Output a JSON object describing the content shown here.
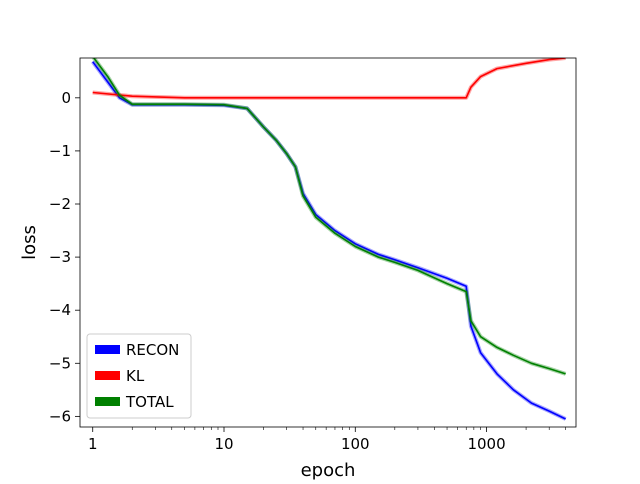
{
  "chart_data": {
    "type": "line",
    "xlabel": "epoch",
    "ylabel": "loss",
    "xscale": "log",
    "xlim": [
      0.8,
      4800
    ],
    "ylim": [
      -6.2,
      0.75
    ],
    "xticks": [
      {
        "value": 1,
        "label": "1"
      },
      {
        "value": 10,
        "label": "10"
      },
      {
        "value": 100,
        "label": "100"
      },
      {
        "value": 1000,
        "label": "1000"
      }
    ],
    "yticks": [
      {
        "value": 0,
        "label": "0"
      },
      {
        "value": -1,
        "label": "−1"
      },
      {
        "value": -2,
        "label": "−2"
      },
      {
        "value": -3,
        "label": "−3"
      },
      {
        "value": -4,
        "label": "−4"
      },
      {
        "value": -5,
        "label": "−5"
      },
      {
        "value": -6,
        "label": "−6"
      }
    ],
    "grid": false,
    "legend_position": "lower-left",
    "series": [
      {
        "name": "RECON",
        "color": "#0000ff",
        "points": [
          [
            1,
            0.68
          ],
          [
            1.3,
            0.3
          ],
          [
            1.6,
            0.0
          ],
          [
            2,
            -0.13
          ],
          [
            3,
            -0.13
          ],
          [
            5,
            -0.13
          ],
          [
            10,
            -0.14
          ],
          [
            15,
            -0.2
          ],
          [
            20,
            -0.55
          ],
          [
            25,
            -0.8
          ],
          [
            30,
            -1.05
          ],
          [
            35,
            -1.3
          ],
          [
            40,
            -1.8
          ],
          [
            50,
            -2.2
          ],
          [
            70,
            -2.5
          ],
          [
            100,
            -2.75
          ],
          [
            150,
            -2.95
          ],
          [
            200,
            -3.05
          ],
          [
            300,
            -3.2
          ],
          [
            500,
            -3.4
          ],
          [
            700,
            -3.55
          ],
          [
            760,
            -4.3
          ],
          [
            900,
            -4.8
          ],
          [
            1200,
            -5.2
          ],
          [
            1600,
            -5.5
          ],
          [
            2200,
            -5.75
          ],
          [
            3000,
            -5.9
          ],
          [
            4000,
            -6.05
          ]
        ]
      },
      {
        "name": "KL",
        "color": "#ff0000",
        "points": [
          [
            1,
            0.1
          ],
          [
            2,
            0.03
          ],
          [
            5,
            0.0
          ],
          [
            10,
            0.0
          ],
          [
            30,
            0.0
          ],
          [
            100,
            0.0
          ],
          [
            300,
            0.0
          ],
          [
            700,
            0.0
          ],
          [
            760,
            0.2
          ],
          [
            900,
            0.4
          ],
          [
            1200,
            0.55
          ],
          [
            2000,
            0.65
          ],
          [
            3000,
            0.72
          ],
          [
            4000,
            0.75
          ]
        ]
      },
      {
        "name": "TOTAL",
        "color": "#008000",
        "points": [
          [
            1,
            0.78
          ],
          [
            1.3,
            0.4
          ],
          [
            1.6,
            0.05
          ],
          [
            2,
            -0.12
          ],
          [
            3,
            -0.12
          ],
          [
            5,
            -0.12
          ],
          [
            10,
            -0.13
          ],
          [
            15,
            -0.2
          ],
          [
            20,
            -0.55
          ],
          [
            25,
            -0.8
          ],
          [
            30,
            -1.05
          ],
          [
            35,
            -1.3
          ],
          [
            40,
            -1.85
          ],
          [
            50,
            -2.25
          ],
          [
            70,
            -2.55
          ],
          [
            100,
            -2.8
          ],
          [
            150,
            -3.0
          ],
          [
            200,
            -3.1
          ],
          [
            300,
            -3.25
          ],
          [
            500,
            -3.5
          ],
          [
            700,
            -3.65
          ],
          [
            760,
            -4.2
          ],
          [
            900,
            -4.5
          ],
          [
            1200,
            -4.7
          ],
          [
            1600,
            -4.85
          ],
          [
            2200,
            -5.0
          ],
          [
            3000,
            -5.1
          ],
          [
            4000,
            -5.2
          ]
        ]
      }
    ]
  },
  "legend": {
    "items": [
      {
        "label": "RECON",
        "color": "#0000ff"
      },
      {
        "label": "KL",
        "color": "#ff0000"
      },
      {
        "label": "TOTAL",
        "color": "#008000"
      }
    ]
  }
}
